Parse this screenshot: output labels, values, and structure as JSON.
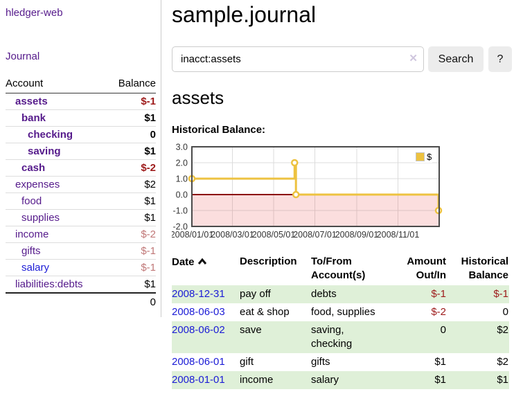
{
  "app": {
    "title": "hledger-web",
    "nav_journal_label": "Journal"
  },
  "sidebar": {
    "header": {
      "account": "Account",
      "balance": "Balance"
    },
    "accounts": [
      {
        "name": "assets",
        "balance": "$-1"
      },
      {
        "name": "bank",
        "balance": "$1"
      },
      {
        "name": "checking",
        "balance": "0"
      },
      {
        "name": "saving",
        "balance": "$1"
      },
      {
        "name": "cash",
        "balance": "$-2"
      },
      {
        "name": "expenses",
        "balance": "$2"
      },
      {
        "name": "food",
        "balance": "$1"
      },
      {
        "name": "supplies",
        "balance": "$1"
      },
      {
        "name": "income",
        "balance": "$-2"
      },
      {
        "name": "gifts",
        "balance": "$-1"
      },
      {
        "name": "salary",
        "balance": "$-1"
      },
      {
        "name": "liabilities:debts",
        "balance": "$1"
      }
    ],
    "total": "0"
  },
  "header": {
    "title": "sample.journal"
  },
  "search": {
    "query": "inacct:assets",
    "placeholder": "",
    "clear_icon": "✕",
    "button_label": "Search",
    "help_label": "?"
  },
  "account_page": {
    "heading": "assets",
    "chart_label": "Historical Balance:"
  },
  "chart_data": {
    "type": "line",
    "step": true,
    "title": "Historical Balance:",
    "x_unit": "days since 2008-01-01",
    "xlim": [
      0,
      366
    ],
    "ylim": [
      -2,
      3
    ],
    "grid": true,
    "grid_color": "#dcdcdc",
    "border_color": "#4a4a4a",
    "negative_region_color": "rgba(235,80,80,0.19)",
    "zero_line_color": "#8b0000",
    "legend": {
      "label": "$",
      "position": "top-right"
    },
    "series": [
      {
        "name": "$",
        "color": "#edc240",
        "points": [
          {
            "date": "2008-01-01",
            "x": 0,
            "y": 1
          },
          {
            "date": "2008-06-01",
            "x": 152,
            "y": 2
          },
          {
            "date": "2008-06-03",
            "x": 154,
            "y": 0
          },
          {
            "date": "2008-12-31",
            "x": 365,
            "y": -1
          }
        ]
      }
    ],
    "y_ticks": [
      {
        "value": 3,
        "label": "3.0"
      },
      {
        "value": 2,
        "label": "2.0"
      },
      {
        "value": 1,
        "label": "1.0"
      },
      {
        "value": 0,
        "label": "0.0"
      },
      {
        "value": -1,
        "label": "-1.0"
      },
      {
        "value": -2,
        "label": "-2.0"
      }
    ],
    "x_ticks": [
      {
        "x": 0,
        "label": "2008/01/01"
      },
      {
        "x": 60,
        "label": "2008/03/01"
      },
      {
        "x": 121,
        "label": "2008/05/01"
      },
      {
        "x": 182,
        "label": "2008/07/01"
      },
      {
        "x": 244,
        "label": "2008/09/01"
      },
      {
        "x": 305,
        "label": "2008/11/01"
      }
    ]
  },
  "register": {
    "columns": {
      "date": "Date",
      "description": "Description",
      "accounts": "To/From Account(s)",
      "amount": "Amount Out/In",
      "balance": "Historical Balance"
    },
    "sort_icon": "chevron-up",
    "rows": [
      {
        "date": "2008-12-31",
        "description": "pay off",
        "accounts": "debts",
        "amount": "$-1",
        "balance": "$-1"
      },
      {
        "date": "2008-06-03",
        "description": "eat & shop",
        "accounts": "food, supplies",
        "amount": "$-2",
        "balance": "0"
      },
      {
        "date": "2008-06-02",
        "description": "save",
        "accounts": "saving, checking",
        "amount": "0",
        "balance": "$2"
      },
      {
        "date": "2008-06-01",
        "description": "gift",
        "accounts": "gifts",
        "amount": "$1",
        "balance": "$2"
      },
      {
        "date": "2008-01-01",
        "description": "income",
        "accounts": "salary",
        "amount": "$1",
        "balance": "$1"
      }
    ]
  }
}
